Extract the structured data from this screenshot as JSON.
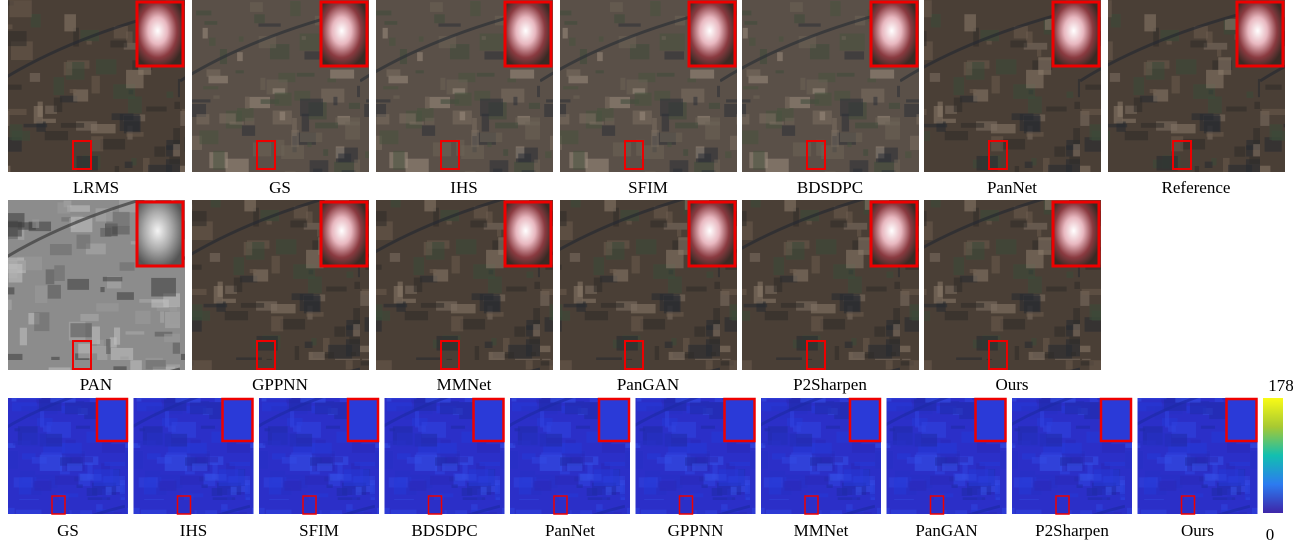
{
  "rows": [
    {
      "labels": [
        "LRMS",
        "GS",
        "IHS",
        "SFIM",
        "BDSDPC",
        "PanNet",
        "Reference"
      ]
    },
    {
      "labels": [
        "PAN",
        "GPPNN",
        "MMNet",
        "PanGAN",
        "P2Sharpen",
        "Ours"
      ]
    },
    {
      "labels": [
        "GS",
        "IHS",
        "SFIM",
        "BDSDPC",
        "PanNet",
        "GPPNN",
        "MMNet",
        "PanGAN",
        "P2Sharpen",
        "Ours"
      ]
    }
  ],
  "colorbar": {
    "max": 178,
    "min": 0
  }
}
